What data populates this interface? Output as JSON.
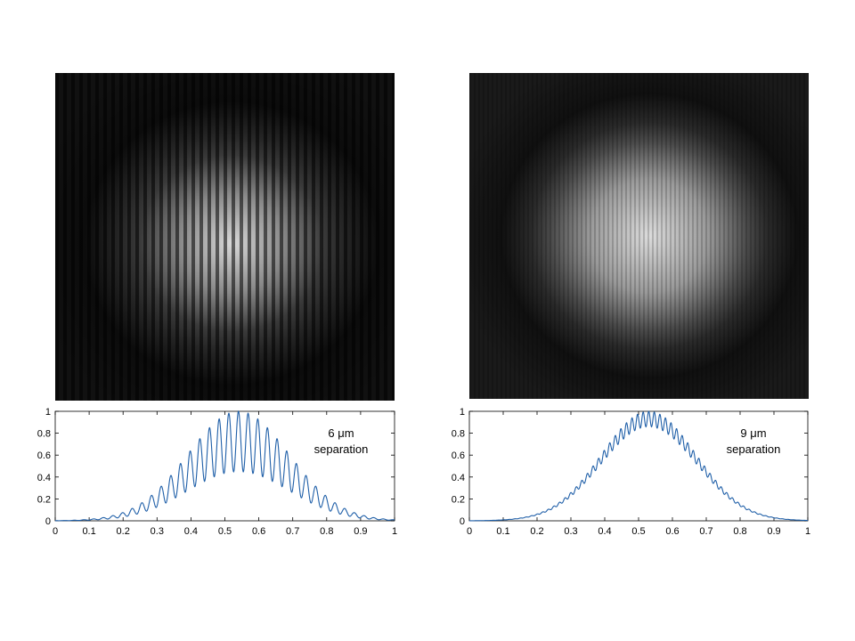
{
  "chart_data": [
    {
      "type": "line",
      "annotation": {
        "line1": "6 μm",
        "line2": "separation"
      },
      "xlim": [
        0,
        1
      ],
      "ylim": [
        0,
        1
      ],
      "xticks": [
        "0",
        "0.1",
        "0.2",
        "0.3",
        "0.4",
        "0.5",
        "0.6",
        "0.7",
        "0.8",
        "0.9",
        "1"
      ],
      "yticks": [
        "0",
        "0.2",
        "0.4",
        "0.6",
        "0.8",
        "1"
      ],
      "grid": false,
      "series_color": "#1f5fa8",
      "profile": {
        "envelope_center": 0.54,
        "envelope_width": 0.3,
        "fringe_period": 0.0285,
        "fringe_depth": 0.55,
        "peak": 1.0
      }
    },
    {
      "type": "line",
      "annotation": {
        "line1": "9 μm",
        "line2": "separation"
      },
      "xlim": [
        0,
        1
      ],
      "ylim": [
        0,
        1
      ],
      "xticks": [
        "0",
        "0.1",
        "0.2",
        "0.3",
        "0.4",
        "0.5",
        "0.6",
        "0.7",
        "0.8",
        "0.9",
        "1"
      ],
      "yticks": [
        "0",
        "0.2",
        "0.4",
        "0.6",
        "0.8",
        "1"
      ],
      "grid": false,
      "series_color": "#1f5fa8",
      "profile": {
        "envelope_center": 0.53,
        "envelope_width": 0.28,
        "fringe_period": 0.0165,
        "fringe_depth": 0.14,
        "peak": 1.0
      }
    }
  ]
}
